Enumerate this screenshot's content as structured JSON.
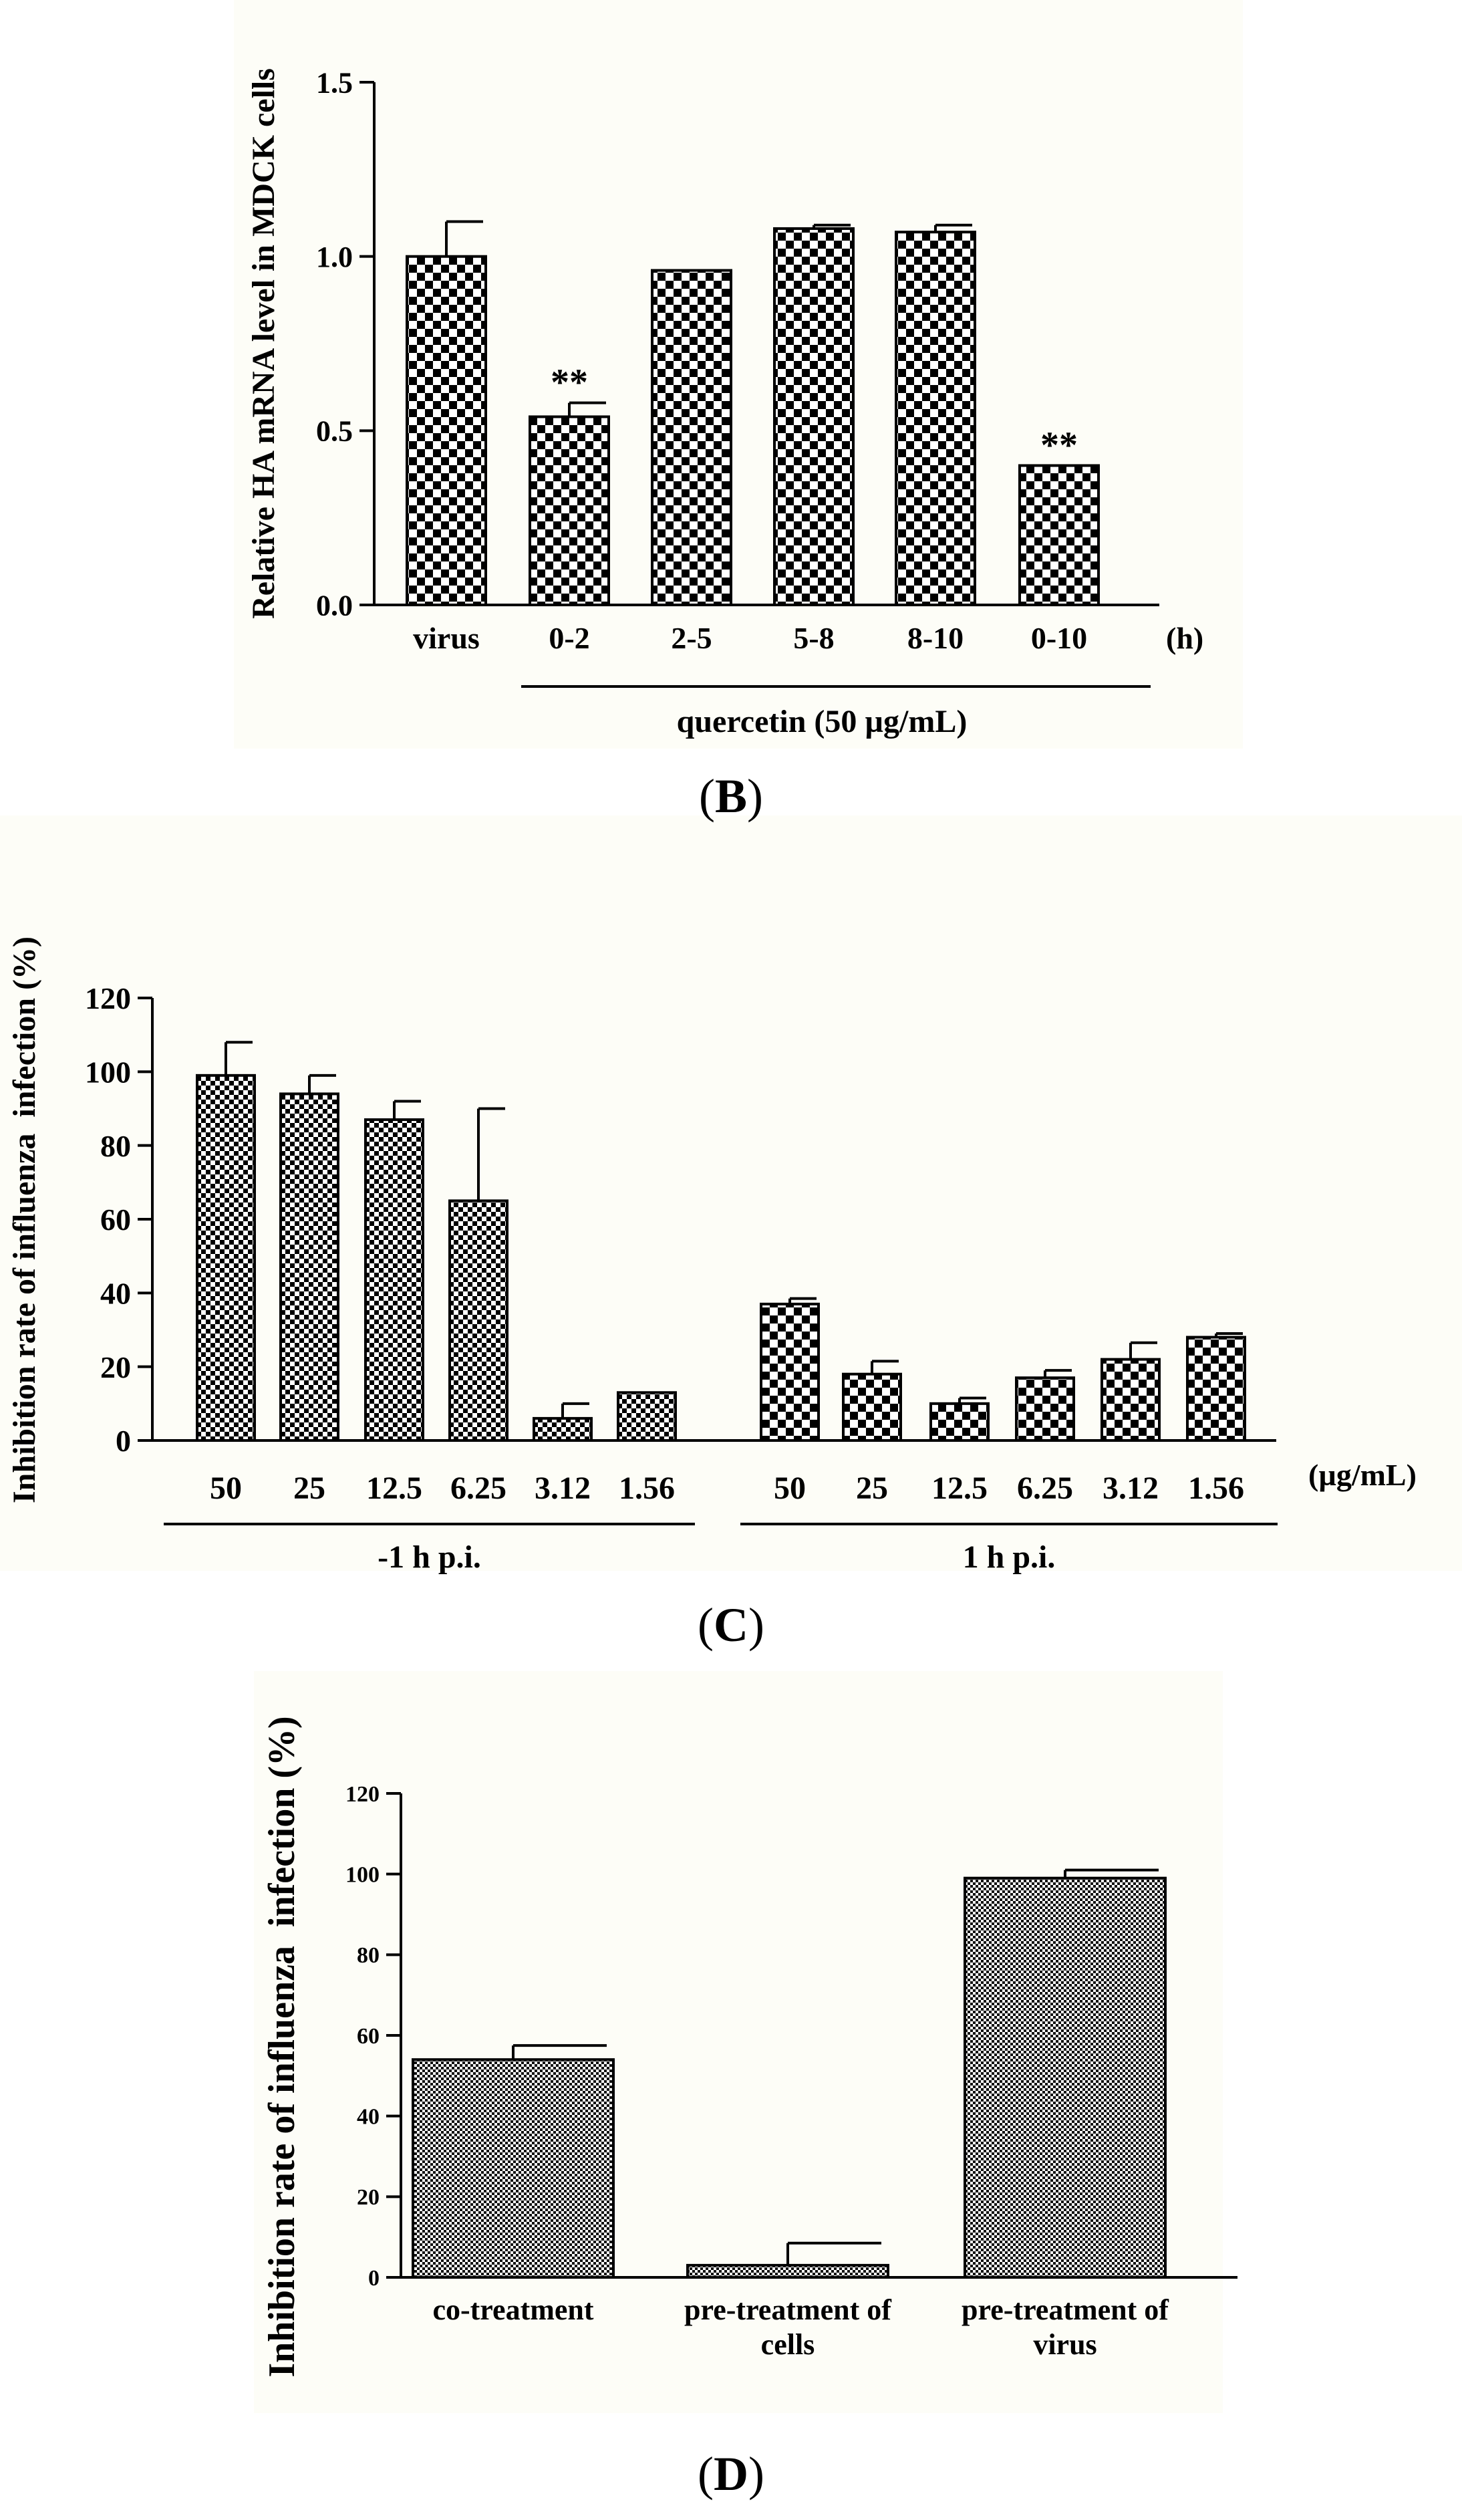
{
  "chart_data": [
    {
      "id": "B",
      "type": "bar",
      "panel_label": "B",
      "ylabel": "Relative HA mRNA level in MDCK cells",
      "xlabel_unit": "(h)",
      "group_label": "quercetin (50 µg/mL)",
      "ylim": [
        0,
        1.5
      ],
      "yticks": [
        "0.0",
        "0.5",
        "1.0",
        "1.5"
      ],
      "ytick_values": [
        0,
        0.5,
        1.0,
        1.5
      ],
      "categories": [
        "virus",
        "0-2",
        "2-5",
        "5-8",
        "8-10",
        "0-10"
      ],
      "values": [
        1.0,
        0.54,
        0.96,
        1.08,
        1.07,
        0.4
      ],
      "errors": [
        0.1,
        0.04,
        0.0,
        0.01,
        0.02,
        0.0
      ],
      "significance": [
        "",
        "**",
        "",
        "",
        "",
        "**"
      ]
    },
    {
      "id": "C",
      "type": "bar",
      "panel_label": "C",
      "ylabel": "Inhibition rate of influenza  infection (%)",
      "xlabel_unit": "(µg/mL)",
      "ylim": [
        0,
        120
      ],
      "yticks": [
        "0",
        "20",
        "40",
        "60",
        "80",
        "100",
        "120"
      ],
      "ytick_values": [
        0,
        20,
        40,
        60,
        80,
        100,
        120
      ],
      "groups": [
        {
          "label": "-1 h p.i.",
          "categories": [
            "50",
            "25",
            "12.5",
            "6.25",
            "3.12",
            "1.56"
          ],
          "values": [
            99,
            94,
            87,
            65,
            6,
            13
          ],
          "errors": [
            9,
            5,
            5,
            25,
            4,
            0
          ]
        },
        {
          "label": "1 h p.i.",
          "categories": [
            "50",
            "25",
            "12.5",
            "6.25",
            "3.12",
            "1.56"
          ],
          "values": [
            37,
            18,
            10,
            17,
            22,
            28
          ],
          "errors": [
            1.5,
            3.5,
            1.5,
            2,
            4.5,
            1
          ]
        }
      ]
    },
    {
      "id": "D",
      "type": "bar",
      "panel_label": "D",
      "ylabel": "Inhibition rate of influenza  infection (%)",
      "ylim": [
        0,
        120
      ],
      "yticks": [
        "0",
        "20",
        "40",
        "60",
        "80",
        "100",
        "120"
      ],
      "ytick_values": [
        0,
        20,
        40,
        60,
        80,
        100,
        120
      ],
      "categories": [
        [
          "co-treatment"
        ],
        [
          "pre-treatment of",
          "cells"
        ],
        [
          "pre-treatment of",
          "virus"
        ]
      ],
      "values": [
        54,
        3,
        99
      ],
      "errors": [
        3.5,
        5.5,
        2
      ]
    }
  ],
  "captions": {
    "B": "B",
    "C": "C",
    "D": "D"
  }
}
